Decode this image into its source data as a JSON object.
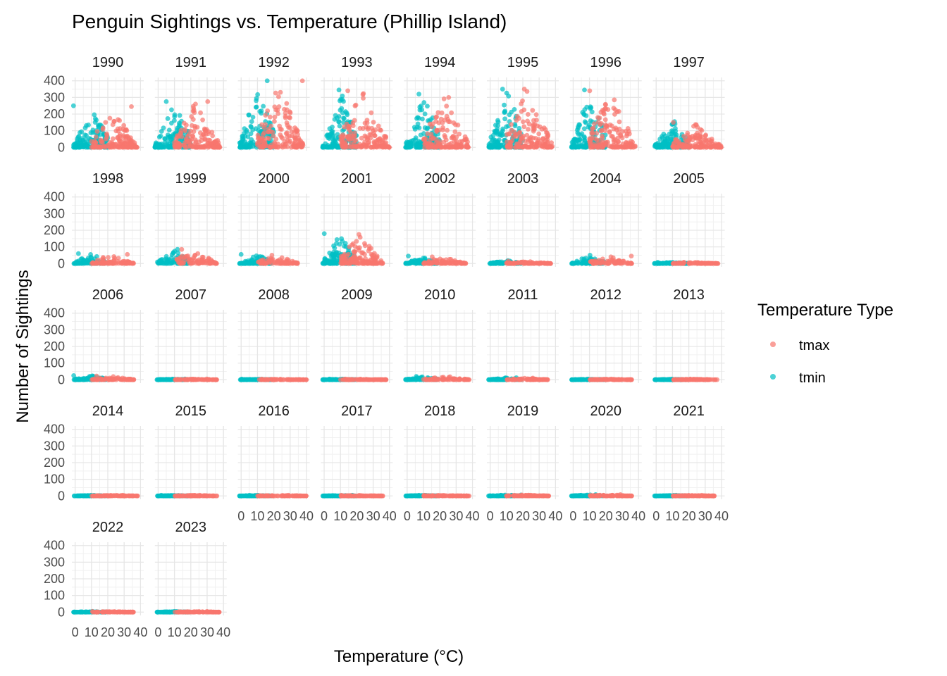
{
  "chart_data": {
    "type": "scatter",
    "title": "Penguin Sightings vs. Temperature (Phillip Island)",
    "xlabel": "Temperature (°C)",
    "ylabel": "Number of Sightings",
    "xlim": [
      -2,
      42
    ],
    "ylim": [
      -20,
      420
    ],
    "x_ticks": [
      "0",
      "10",
      "20",
      "30",
      "40"
    ],
    "y_ticks": [
      "0",
      "100",
      "200",
      "300",
      "400"
    ],
    "grid": true,
    "facet_by": "year",
    "facets": [
      "1990",
      "1991",
      "1992",
      "1993",
      "1994",
      "1995",
      "1996",
      "1997",
      "1998",
      "1999",
      "2000",
      "2001",
      "2002",
      "2003",
      "2004",
      "2005",
      "2006",
      "2007",
      "2008",
      "2009",
      "2010",
      "2011",
      "2012",
      "2013",
      "2014",
      "2015",
      "2016",
      "2017",
      "2018",
      "2019",
      "2020",
      "2021",
      "2022",
      "2023"
    ],
    "legend": {
      "title": "Temperature Type",
      "position": "right",
      "entries": [
        {
          "name": "tmax",
          "color": "#F8766D"
        },
        {
          "name": "tmin",
          "color": "#00BFC4"
        }
      ]
    },
    "series": [
      {
        "name": "tmin",
        "color": "#00BFC4",
        "x_range_by_year": [
          [
            -1,
            20
          ],
          [
            -2,
            20
          ],
          [
            -1,
            20
          ],
          [
            -1,
            20
          ],
          [
            -1,
            20
          ],
          [
            -1,
            20
          ],
          [
            -1,
            20
          ],
          [
            -1,
            20
          ],
          [
            -1,
            19
          ],
          [
            -1,
            19
          ],
          [
            -1,
            19
          ],
          [
            -1,
            19
          ],
          [
            -1,
            19
          ],
          [
            -1,
            19
          ],
          [
            -1,
            19
          ],
          [
            -1,
            19
          ],
          [
            -1,
            19
          ],
          [
            -1,
            19
          ],
          [
            -1,
            19
          ],
          [
            -1,
            19
          ],
          [
            -1,
            19
          ],
          [
            -1,
            19
          ],
          [
            -1,
            19
          ],
          [
            -1,
            19
          ],
          [
            -1,
            19
          ],
          [
            -1,
            19
          ],
          [
            -1,
            19
          ],
          [
            -1,
            19
          ],
          [
            -1,
            19
          ],
          [
            -1,
            19
          ],
          [
            -1,
            19
          ],
          [
            -1,
            19
          ],
          [
            -1,
            19
          ],
          [
            -1,
            19
          ]
        ],
        "max_sightings_by_year": [
          250,
          275,
          400,
          345,
          320,
          350,
          345,
          155,
          60,
          85,
          55,
          180,
          45,
          18,
          50,
          8,
          25,
          5,
          4,
          4,
          20,
          12,
          4,
          4,
          4,
          4,
          4,
          4,
          4,
          6,
          8,
          4,
          4,
          4
        ]
      },
      {
        "name": "tmax",
        "color": "#F8766D",
        "x_range_by_year": [
          [
            10,
            38
          ],
          [
            10,
            38
          ],
          [
            10,
            38
          ],
          [
            10,
            40
          ],
          [
            10,
            38
          ],
          [
            10,
            38
          ],
          [
            10,
            38
          ],
          [
            10,
            40
          ],
          [
            10,
            36
          ],
          [
            10,
            36
          ],
          [
            10,
            36
          ],
          [
            10,
            36
          ],
          [
            10,
            36
          ],
          [
            10,
            38
          ],
          [
            10,
            36
          ],
          [
            10,
            38
          ],
          [
            10,
            36
          ],
          [
            10,
            36
          ],
          [
            10,
            40
          ],
          [
            10,
            38
          ],
          [
            10,
            38
          ],
          [
            10,
            36
          ],
          [
            10,
            36
          ],
          [
            10,
            38
          ],
          [
            10,
            40
          ],
          [
            10,
            36
          ],
          [
            10,
            40
          ],
          [
            10,
            36
          ],
          [
            10,
            38
          ],
          [
            10,
            36
          ],
          [
            10,
            36
          ],
          [
            10,
            36
          ],
          [
            10,
            36
          ],
          [
            10,
            38
          ]
        ],
        "max_sightings_by_year": [
          245,
          275,
          400,
          340,
          300,
          350,
          340,
          150,
          55,
          85,
          50,
          175,
          40,
          15,
          45,
          8,
          22,
          5,
          4,
          4,
          18,
          10,
          4,
          4,
          4,
          4,
          4,
          4,
          4,
          6,
          8,
          4,
          4,
          4
        ]
      }
    ]
  }
}
